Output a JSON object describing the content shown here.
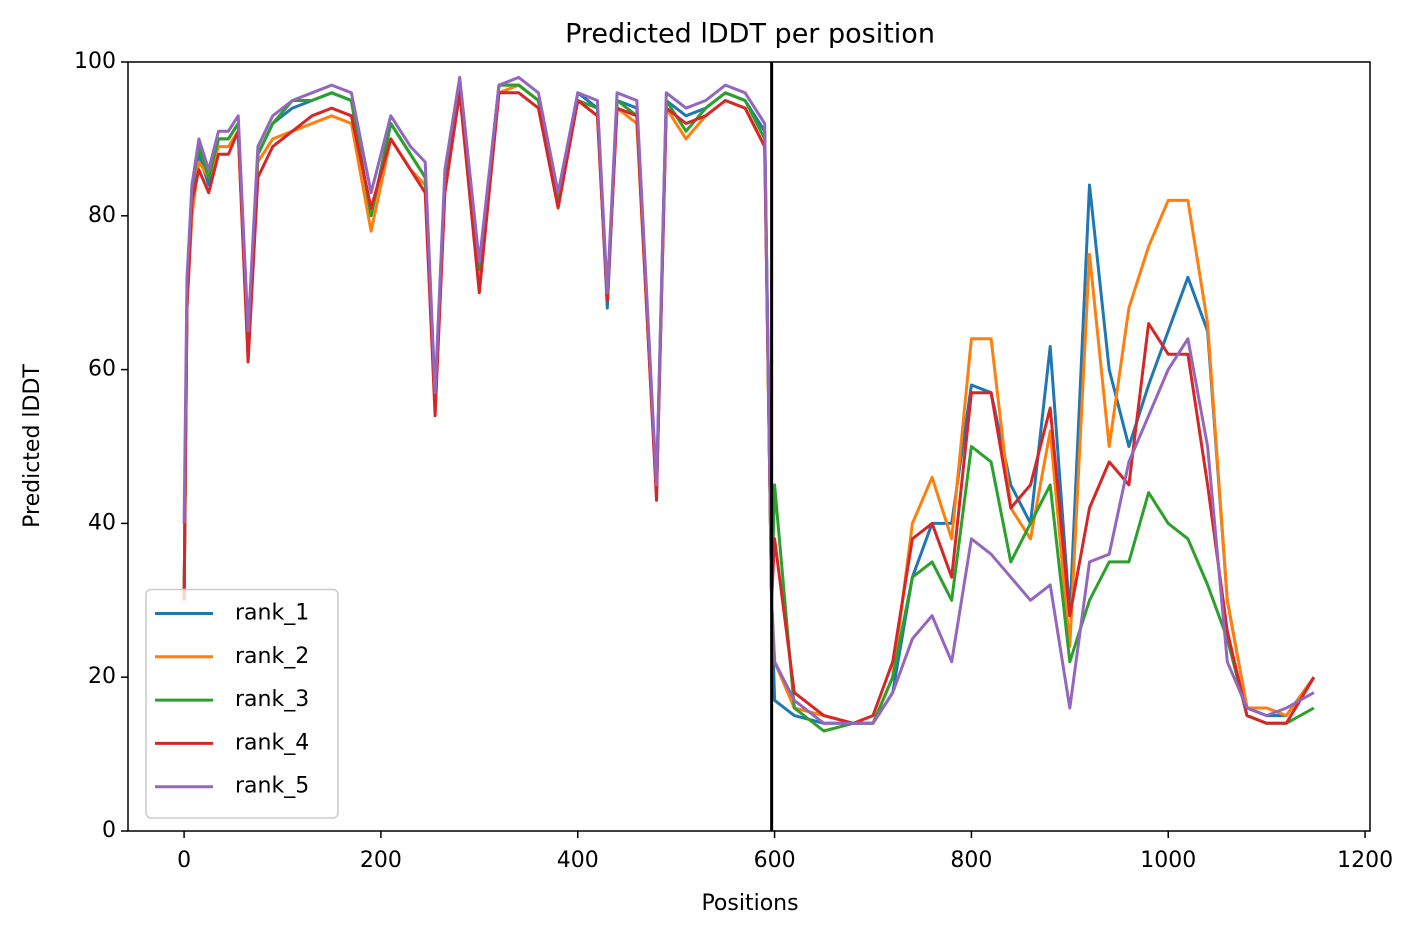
{
  "chart_data": {
    "type": "line",
    "title": "Predicted lDDT per position",
    "x_label": "Positions",
    "y_label": "Predicted lDDT",
    "x": [
      0,
      3,
      8,
      15,
      25,
      35,
      45,
      55,
      65,
      75,
      90,
      110,
      130,
      150,
      170,
      190,
      210,
      230,
      245,
      255,
      265,
      280,
      300,
      320,
      340,
      360,
      380,
      400,
      420,
      430,
      440,
      460,
      480,
      490,
      510,
      530,
      550,
      570,
      590,
      597,
      600,
      620,
      650,
      680,
      700,
      720,
      740,
      760,
      780,
      800,
      820,
      840,
      860,
      880,
      900,
      920,
      940,
      960,
      980,
      1000,
      1020,
      1040,
      1060,
      1080,
      1100,
      1120,
      1148
    ],
    "series": [
      {
        "name": "rank_1",
        "color": "#1f77b4",
        "values": [
          30,
          70,
          83,
          88,
          84,
          90,
          90,
          92,
          63,
          88,
          92,
          94,
          95,
          96,
          95,
          80,
          92,
          88,
          85,
          56,
          85,
          97,
          73,
          97,
          97,
          95,
          82,
          96,
          94,
          68,
          95,
          94,
          44,
          95,
          93,
          94,
          96,
          95,
          91,
          30,
          17,
          15,
          14,
          14,
          14,
          18,
          33,
          40,
          40,
          58,
          57,
          45,
          40,
          63,
          28,
          84,
          60,
          50,
          58,
          65,
          72,
          65,
          30,
          16,
          15,
          15,
          20
        ]
      },
      {
        "name": "rank_2",
        "color": "#ff7f0e",
        "values": [
          30,
          68,
          80,
          87,
          85,
          89,
          89,
          91,
          62,
          87,
          90,
          91,
          92,
          93,
          92,
          78,
          90,
          86,
          84,
          55,
          84,
          97,
          72,
          96,
          97,
          95,
          82,
          95,
          93,
          69,
          94,
          92,
          44,
          94,
          90,
          93,
          95,
          94,
          89,
          30,
          22,
          16,
          15,
          14,
          14,
          20,
          40,
          46,
          38,
          64,
          64,
          42,
          38,
          52,
          24,
          75,
          50,
          68,
          76,
          82,
          82,
          66,
          30,
          16,
          16,
          15,
          20
        ]
      },
      {
        "name": "rank_3",
        "color": "#2ca02c",
        "values": [
          30,
          70,
          84,
          89,
          85,
          90,
          90,
          92,
          64,
          88,
          92,
          95,
          95,
          96,
          95,
          80,
          92,
          88,
          85,
          56,
          85,
          97,
          73,
          97,
          97,
          95,
          82,
          95,
          94,
          69,
          95,
          93,
          44,
          95,
          91,
          94,
          96,
          95,
          90,
          30,
          45,
          16,
          13,
          14,
          14,
          20,
          33,
          35,
          30,
          50,
          48,
          35,
          40,
          45,
          22,
          30,
          35,
          35,
          44,
          40,
          38,
          32,
          25,
          15,
          14,
          14,
          16
        ]
      },
      {
        "name": "rank_4",
        "color": "#d62728",
        "values": [
          30,
          68,
          82,
          86,
          83,
          88,
          88,
          91,
          61,
          85,
          89,
          91,
          93,
          94,
          93,
          81,
          90,
          86,
          83,
          54,
          83,
          96,
          70,
          96,
          96,
          94,
          81,
          95,
          93,
          69,
          94,
          93,
          43,
          94,
          92,
          93,
          95,
          94,
          89,
          30,
          38,
          18,
          15,
          14,
          15,
          22,
          38,
          40,
          33,
          57,
          57,
          42,
          45,
          55,
          28,
          42,
          48,
          45,
          66,
          62,
          62,
          45,
          26,
          15,
          14,
          14,
          20
        ]
      },
      {
        "name": "rank_5",
        "color": "#9467bd",
        "values": [
          40,
          72,
          84,
          90,
          86,
          91,
          91,
          93,
          65,
          89,
          93,
          95,
          96,
          97,
          96,
          83,
          93,
          89,
          87,
          57,
          86,
          98,
          74,
          97,
          98,
          96,
          83,
          96,
          95,
          70,
          96,
          95,
          45,
          96,
          94,
          95,
          97,
          96,
          92,
          30,
          22,
          17,
          14,
          14,
          14,
          18,
          25,
          28,
          22,
          38,
          36,
          33,
          30,
          32,
          16,
          35,
          36,
          48,
          54,
          60,
          64,
          50,
          22,
          16,
          15,
          16,
          18
        ]
      }
    ],
    "vline": 597,
    "vline_color": "#000000",
    "xlim": [
      -57,
      1205
    ],
    "ylim": [
      0,
      100
    ],
    "xticks": [
      0,
      200,
      400,
      600,
      800,
      1000,
      1200
    ],
    "yticks": [
      0,
      20,
      40,
      60,
      80,
      100
    ],
    "legend": "lower left"
  }
}
